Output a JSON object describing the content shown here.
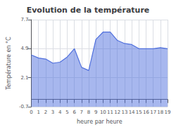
{
  "chart_data": {
    "type": "area",
    "title": "Evolution de la température",
    "xlabel": "heure par heure",
    "ylabel": "Température en °C",
    "x": [
      0,
      1,
      2,
      3,
      4,
      5,
      6,
      7,
      8,
      9,
      10,
      11,
      12,
      13,
      14,
      15,
      16,
      17,
      18,
      19
    ],
    "values": [
      4.3,
      4.0,
      3.9,
      3.5,
      3.6,
      4.1,
      4.9,
      3.1,
      2.8,
      5.8,
      6.5,
      6.5,
      5.7,
      5.4,
      5.3,
      4.9,
      4.9,
      4.9,
      5.0,
      4.9
    ],
    "xlim": [
      0,
      19
    ],
    "xticks": [
      0,
      1,
      2,
      3,
      4,
      5,
      6,
      7,
      8,
      9,
      10,
      11,
      12,
      13,
      14,
      15,
      16,
      17,
      18,
      19
    ],
    "ylim": [
      -0.7,
      7.7
    ],
    "yticks": [
      -0.7,
      2.1,
      4.9,
      7.7
    ],
    "grid": true
  }
}
